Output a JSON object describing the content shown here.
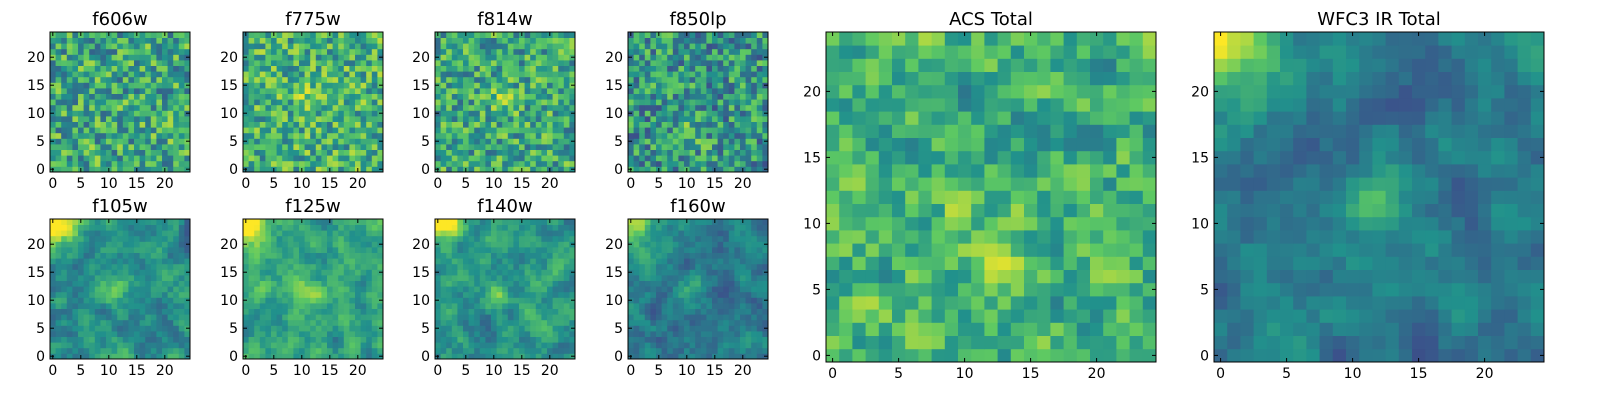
{
  "figure_title": "",
  "colormap": {
    "name": "viridis",
    "stops": [
      "#440154",
      "#3b528b",
      "#21918c",
      "#5ec962",
      "#fde725"
    ]
  },
  "chart_data": [
    {
      "type": "heatmap",
      "title": "f606w",
      "grid": [
        25,
        25
      ],
      "xlim": [
        0,
        24
      ],
      "ylim": [
        0,
        24
      ],
      "xticks": [
        0,
        5,
        10,
        15,
        20
      ],
      "yticks": [
        0,
        5,
        10,
        15,
        20
      ],
      "pattern": "noise",
      "mean": 0.6,
      "spread": 0.28,
      "hotspot": [],
      "seed": 11
    },
    {
      "type": "heatmap",
      "title": "f775w",
      "grid": [
        25,
        25
      ],
      "xlim": [
        0,
        24
      ],
      "ylim": [
        0,
        24
      ],
      "xticks": [
        0,
        5,
        10,
        15,
        20
      ],
      "yticks": [
        0,
        5,
        10,
        15,
        20
      ],
      "pattern": "noise",
      "mean": 0.64,
      "spread": 0.26,
      "hotspot": [
        12,
        13
      ],
      "seed": 23
    },
    {
      "type": "heatmap",
      "title": "f814w",
      "grid": [
        25,
        25
      ],
      "xlim": [
        0,
        24
      ],
      "ylim": [
        0,
        24
      ],
      "xticks": [
        0,
        5,
        10,
        15,
        20
      ],
      "yticks": [
        0,
        5,
        10,
        15,
        20
      ],
      "pattern": "noise",
      "mean": 0.6,
      "spread": 0.26,
      "hotspot": [
        12,
        12
      ],
      "seed": 37
    },
    {
      "type": "heatmap",
      "title": "f850lp",
      "grid": [
        25,
        25
      ],
      "xlim": [
        0,
        24
      ],
      "ylim": [
        0,
        24
      ],
      "xticks": [
        0,
        5,
        10,
        15,
        20
      ],
      "yticks": [
        0,
        5,
        10,
        15,
        20
      ],
      "pattern": "noise",
      "mean": 0.52,
      "spread": 0.28,
      "hotspot": [
        11,
        6
      ],
      "seed": 41
    },
    {
      "type": "heatmap",
      "title": "f105w",
      "grid": [
        25,
        25
      ],
      "xlim": [
        0,
        24
      ],
      "ylim": [
        0,
        24
      ],
      "xticks": [
        0,
        5,
        10,
        15,
        20
      ],
      "yticks": [
        0,
        5,
        10,
        15,
        20
      ],
      "pattern": "smooth-corner",
      "mean": 0.5,
      "spread": 0.2,
      "hotspot": [
        11,
        12
      ],
      "seed": 53
    },
    {
      "type": "heatmap",
      "title": "f125w",
      "grid": [
        25,
        25
      ],
      "xlim": [
        0,
        24
      ],
      "ylim": [
        0,
        24
      ],
      "xticks": [
        0,
        5,
        10,
        15,
        20
      ],
      "yticks": [
        0,
        5,
        10,
        15,
        20
      ],
      "pattern": "smooth-corner",
      "mean": 0.58,
      "spread": 0.2,
      "hotspot": [
        11,
        12
      ],
      "seed": 67
    },
    {
      "type": "heatmap",
      "title": "f140w",
      "grid": [
        25,
        25
      ],
      "xlim": [
        0,
        24
      ],
      "ylim": [
        0,
        24
      ],
      "xticks": [
        0,
        5,
        10,
        15,
        20
      ],
      "yticks": [
        0,
        5,
        10,
        15,
        20
      ],
      "pattern": "smooth-corner",
      "mean": 0.52,
      "spread": 0.2,
      "hotspot": [
        11,
        11
      ],
      "seed": 79
    },
    {
      "type": "heatmap",
      "title": "f160w",
      "grid": [
        25,
        25
      ],
      "xlim": [
        0,
        24
      ],
      "ylim": [
        0,
        24
      ],
      "xticks": [
        0,
        5,
        10,
        15,
        20
      ],
      "yticks": [
        0,
        5,
        10,
        15,
        20
      ],
      "pattern": "smooth-corner",
      "mean": 0.4,
      "spread": 0.18,
      "hotspot": [
        11,
        12
      ],
      "seed": 83
    },
    {
      "type": "heatmap",
      "title": "ACS Total",
      "grid": [
        25,
        25
      ],
      "xlim": [
        0,
        24
      ],
      "ylim": [
        0,
        24
      ],
      "xticks": [
        0,
        5,
        10,
        15,
        20
      ],
      "yticks": [
        0,
        5,
        10,
        15,
        20
      ],
      "pattern": "noise-smooth",
      "mean": 0.64,
      "spread": 0.2,
      "hotspot": [
        12,
        8
      ],
      "seed": 97
    },
    {
      "type": "heatmap",
      "title": "WFC3 IR Total",
      "grid": [
        25,
        25
      ],
      "xlim": [
        0,
        24
      ],
      "ylim": [
        0,
        24
      ],
      "xticks": [
        0,
        5,
        10,
        15,
        20
      ],
      "yticks": [
        0,
        5,
        10,
        15,
        20
      ],
      "pattern": "smooth-corner",
      "mean": 0.42,
      "spread": 0.16,
      "hotspot": [
        11,
        12
      ],
      "seed": 101
    }
  ]
}
